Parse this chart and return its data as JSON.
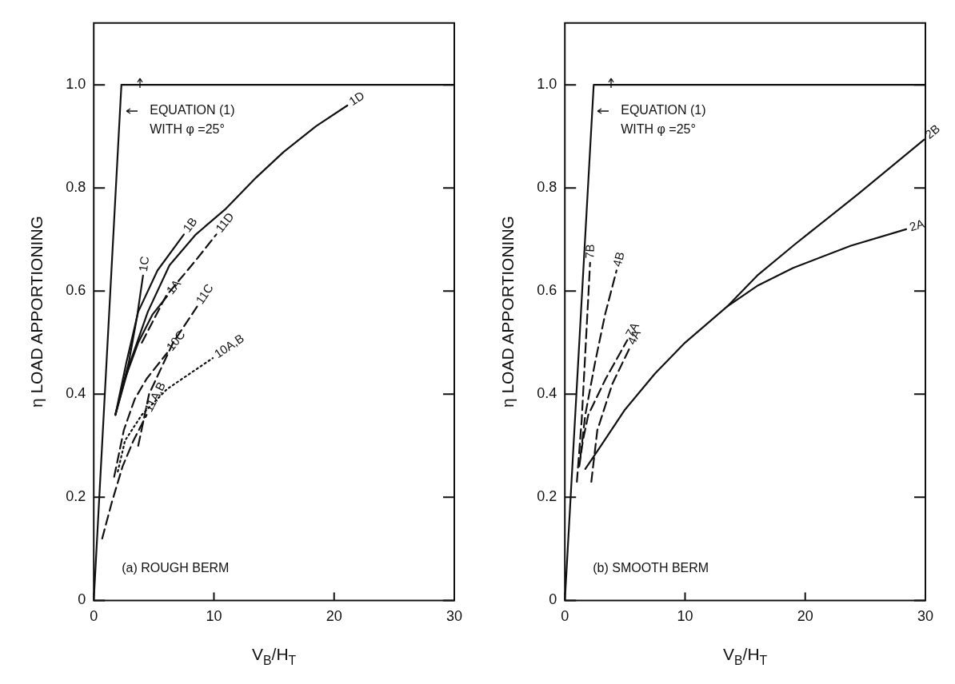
{
  "chart_data": [
    {
      "type": "line",
      "xlabel": "V$_{B}$/H$_{T}$",
      "ylabel": "η LOAD APPORTIONING",
      "xlim": [
        0,
        30
      ],
      "xticks": [
        0,
        10,
        20,
        30
      ],
      "ylim": [
        0,
        1.12
      ],
      "yticks": [
        0,
        0.2,
        0.4,
        0.6,
        0.8,
        {
          "value": 1,
          "label": "1.0"
        }
      ],
      "marker": "none",
      "legend": false,
      "annotations": [
        "EQUATION (1)\nWITH φ =25°",
        "(a) ROUGH BERM"
      ],
      "series": [
        {
          "color": "#111111",
          "line_style": "solid",
          "x": [
            0,
            2.3,
            30
          ],
          "values": [
            0,
            1.0,
            1.0
          ]
        },
        {
          "name": "1D",
          "color": "#111111",
          "line_style": "solid",
          "x": [
            1.8,
            3,
            4.5,
            6.3,
            8.5,
            11,
            13.5,
            15.8,
            18.5,
            21.1
          ],
          "values": [
            0.36,
            0.46,
            0.56,
            0.65,
            0.71,
            0.76,
            0.82,
            0.87,
            0.92,
            0.96
          ]
        },
        {
          "name": "1C",
          "color": "#111111",
          "line_style": "solid",
          "x": [
            1.8,
            2.9,
            3.6,
            4.1
          ],
          "values": [
            0.36,
            0.46,
            0.55,
            0.63
          ]
        },
        {
          "name": "1B",
          "color": "#111111",
          "line_style": "solid",
          "x": [
            1.8,
            2.7,
            3.7,
            5.3,
            7.5
          ],
          "values": [
            0.36,
            0.46,
            0.56,
            0.64,
            0.71
          ]
        },
        {
          "name": "1A",
          "color": "#111111",
          "line_style": "solid",
          "x": [
            1.8,
            2.6,
            3.7,
            4.9,
            6.1
          ],
          "values": [
            0.36,
            0.43,
            0.5,
            0.555,
            0.59
          ]
        },
        {
          "name": "11D",
          "color": "#111111",
          "line_style": "dashed",
          "x": [
            4.0,
            6.0,
            8.5,
            10.2
          ],
          "values": [
            0.5,
            0.59,
            0.66,
            0.71
          ]
        },
        {
          "name": "11C",
          "color": "#111111",
          "line_style": "dashed",
          "x": [
            3.7,
            4.6,
            6.6,
            8.6
          ],
          "values": [
            0.3,
            0.4,
            0.5,
            0.57
          ]
        },
        {
          "name": "10C",
          "color": "#111111",
          "line_style": "dashed",
          "x": [
            1.7,
            2.5,
            3.4,
            4.4,
            6.1
          ],
          "values": [
            0.24,
            0.33,
            0.39,
            0.43,
            0.48
          ]
        },
        {
          "name": "10A,B",
          "color": "#111111",
          "line_style": "dotted",
          "x": [
            2.0,
            2.6,
            4.0,
            6.1,
            8,
            9.9
          ],
          "values": [
            0.25,
            0.31,
            0.36,
            0.41,
            0.44,
            0.47
          ]
        },
        {
          "name": "11A,B",
          "color": "#111111",
          "line_style": "dashed",
          "x": [
            0.7,
            1.5,
            2.4,
            3.3,
            4.4
          ],
          "values": [
            0.12,
            0.19,
            0.26,
            0.31,
            0.36
          ]
        }
      ]
    },
    {
      "type": "line",
      "xlabel": "V$_{B}$/H$_{T}$",
      "ylabel": "η LOAD APPORTIONING",
      "xlim": [
        0,
        30
      ],
      "xticks": [
        0,
        10,
        20,
        30
      ],
      "ylim": [
        0,
        1.12
      ],
      "yticks": [
        0,
        0.2,
        0.4,
        0.6,
        0.8,
        {
          "value": 1,
          "label": "1.0"
        }
      ],
      "marker": "none",
      "legend": false,
      "annotations": [
        "EQUATION (1)\nWITH φ =25°",
        "(b) SMOOTH BERM"
      ],
      "series": [
        {
          "color": "#111111",
          "line_style": "solid",
          "x": [
            0,
            2.4,
            30
          ],
          "values": [
            0,
            1.0,
            1.0
          ]
        },
        {
          "name": "2B",
          "color": "#111111",
          "line_style": "solid",
          "x": [
            1.7,
            3,
            5,
            7.5,
            10,
            13.5,
            16,
            19.1,
            24.5,
            29.9
          ],
          "values": [
            0.255,
            0.3,
            0.37,
            0.44,
            0.5,
            0.57,
            0.63,
            0.69,
            0.79,
            0.894
          ]
        },
        {
          "name": "2A",
          "color": "#111111",
          "line_style": "solid",
          "x": [
            13.5,
            16,
            19,
            23.8,
            28.4
          ],
          "values": [
            0.57,
            0.61,
            0.645,
            0.688,
            0.72
          ]
        },
        {
          "name": "7B",
          "color": "#111111",
          "line_style": "dashed",
          "x": [
            1.0,
            1.4,
            1.7,
            2.1
          ],
          "values": [
            0.23,
            0.35,
            0.48,
            0.655
          ]
        },
        {
          "name": "4B",
          "color": "#111111",
          "line_style": "dashed",
          "x": [
            1.3,
            1.7,
            2.5,
            3.35,
            4.3
          ],
          "values": [
            0.28,
            0.36,
            0.46,
            0.555,
            0.64
          ]
        },
        {
          "name": "7A",
          "color": "#111111",
          "line_style": "dashed",
          "x": [
            1.2,
            1.5,
            1.95,
            3.4,
            5.2
          ],
          "values": [
            0.26,
            0.31,
            0.36,
            0.43,
            0.505
          ]
        },
        {
          "name": "4A",
          "color": "#111111",
          "line_style": "dashed",
          "x": [
            2.2,
            2.7,
            3.95,
            5.4
          ],
          "values": [
            0.23,
            0.33,
            0.42,
            0.49
          ]
        }
      ]
    }
  ]
}
